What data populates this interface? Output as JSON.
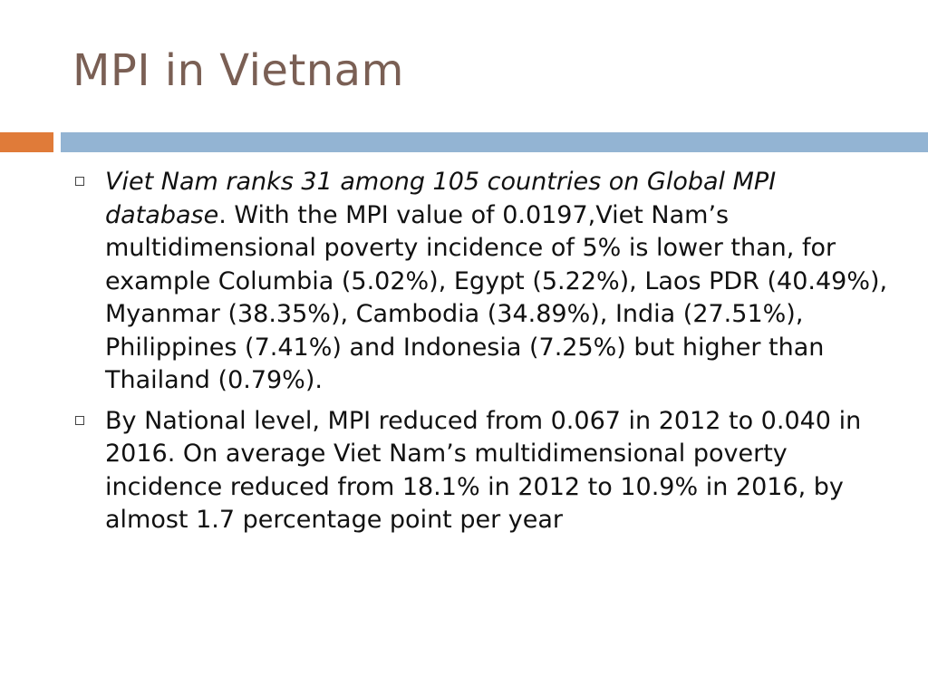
{
  "slide": {
    "title": "MPI in Vietnam",
    "colors": {
      "title": "#7a5f54",
      "accent_bar": "#e07b39",
      "main_bar": "#93b4d3",
      "bullet_marker": "#444444"
    },
    "bullets": [
      {
        "icon": "square-bullet-icon",
        "italic_text": "Viet Nam ranks 31 among 105 countries on Global MPI database",
        "text": ". With the MPI value of 0.0197,Viet Nam’s multidimensional poverty incidence of 5% is lower than, for example Columbia (5.02%), Egypt (5.22%), Laos PDR (40.49%), Myanmar (38.35%), Cambodia (34.89%), India (27.51%), Philippines (7.41%) and Indonesia (7.25%) but higher than Thailand (0.79%)."
      },
      {
        "icon": "square-bullet-icon",
        "italic_text": "",
        "text": "By National level, MPI reduced from 0.067 in 2012 to 0.040 in 2016. On average Viet Nam’s multidimensional poverty incidence reduced from 18.1% in 2012 to 10.9% in 2016, by almost 1.7 percentage point per year"
      }
    ]
  }
}
